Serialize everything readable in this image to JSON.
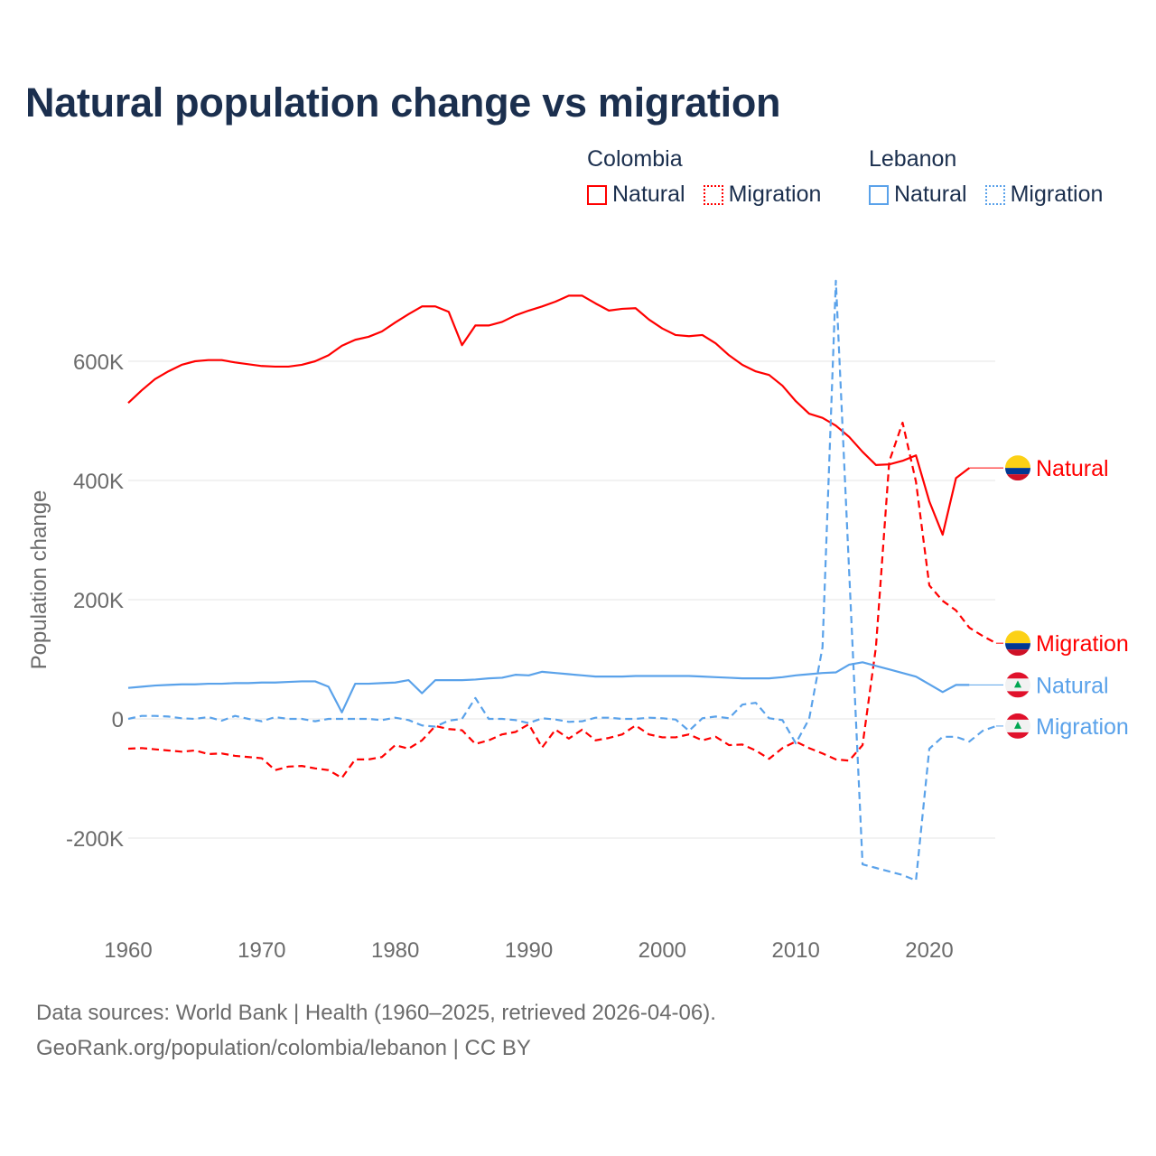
{
  "title": "Natural population change vs migration",
  "legend": [
    {
      "group": "Colombia",
      "items": [
        {
          "label": "Natural",
          "style": "solid",
          "color": "#ff0000"
        },
        {
          "label": "Migration",
          "style": "dotted",
          "color": "#ff0000"
        }
      ]
    },
    {
      "group": "Lebanon",
      "items": [
        {
          "label": "Natural",
          "style": "solid",
          "color": "#5aa2ea"
        },
        {
          "label": "Migration",
          "style": "dotted",
          "color": "#5aa2ea"
        }
      ]
    }
  ],
  "footer": {
    "line1": "Data sources: World Bank | Health (1960–2025, retrieved 2026-04-06).",
    "line2": "GeoRank.org/population/colombia/lebanon | CC BY"
  },
  "chart_data": {
    "type": "line",
    "title": "Natural population change vs migration",
    "xlabel": "",
    "ylabel": "Population change",
    "xlim": [
      1960,
      2025
    ],
    "ylim": [
      -300,
      750
    ],
    "y_unit": "thousands",
    "grid": true,
    "x_ticks": [
      {
        "value": 1960,
        "label": "1960"
      },
      {
        "value": 1970,
        "label": "1970"
      },
      {
        "value": 1980,
        "label": "1980"
      },
      {
        "value": 1990,
        "label": "1990"
      },
      {
        "value": 2000,
        "label": "2000"
      },
      {
        "value": 2010,
        "label": "2010"
      },
      {
        "value": 2020,
        "label": "2020"
      }
    ],
    "y_ticks": [
      {
        "value": -200,
        "label": "-200K"
      },
      {
        "value": 0,
        "label": "0"
      },
      {
        "value": 200,
        "label": "200K"
      },
      {
        "value": 400,
        "label": "400K"
      },
      {
        "value": 600,
        "label": "600K"
      }
    ],
    "series": [
      {
        "name": "Natural",
        "country": "Colombia",
        "color": "#ff0000",
        "dash": "solid",
        "flag": "colombia",
        "start_year": 1960,
        "values": [
          530,
          551,
          570,
          583,
          594,
          600,
          602,
          602,
          598,
          595,
          592,
          591,
          591,
          594,
          600,
          610,
          626,
          636,
          641,
          650,
          665,
          679,
          692,
          692,
          683,
          627,
          660,
          660,
          666,
          677,
          685,
          692,
          700,
          710,
          710,
          697,
          685,
          688,
          689,
          670,
          655,
          644,
          642,
          644,
          630,
          610,
          594,
          583,
          577,
          559,
          533,
          512,
          505,
          492,
          473,
          448,
          426,
          427,
          433,
          442,
          365,
          309,
          404,
          421
        ]
      },
      {
        "name": "Migration",
        "country": "Colombia",
        "color": "#ff0000",
        "dash": "dashed",
        "flag": "colombia",
        "start_year": 1960,
        "values": [
          -50,
          -49,
          -51,
          -53,
          -55,
          -53,
          -59,
          -58,
          -62,
          -64,
          -66,
          -86,
          -80,
          -79,
          -83,
          -86,
          -99,
          -68,
          -68,
          -64,
          -44,
          -50,
          -36,
          -12,
          -17,
          -19,
          -42,
          -36,
          -26,
          -22,
          -9,
          -48,
          -18,
          -33,
          -18,
          -36,
          -32,
          -26,
          -11,
          -26,
          -31,
          -31,
          -26,
          -36,
          -30,
          -44,
          -43,
          -53,
          -67,
          -49,
          -38,
          -49,
          -58,
          -68,
          -70,
          -44,
          120,
          432,
          497,
          398,
          224,
          198,
          182,
          153,
          139,
          127
        ]
      },
      {
        "name": "Natural",
        "country": "Lebanon",
        "color": "#5aa2ea",
        "dash": "solid",
        "flag": "lebanon",
        "start_year": 1960,
        "values": [
          52,
          54,
          56,
          57,
          58,
          58,
          59,
          59,
          60,
          60,
          61,
          61,
          62,
          63,
          63,
          54,
          11,
          59,
          59,
          60,
          61,
          65,
          43,
          65,
          65,
          65,
          66,
          68,
          69,
          74,
          73,
          79,
          77,
          75,
          73,
          71,
          71,
          71,
          72,
          72,
          72,
          72,
          72,
          71,
          70,
          69,
          68,
          68,
          68,
          70,
          73,
          75,
          77,
          78,
          91,
          95,
          89,
          83,
          77,
          71,
          58,
          45,
          57,
          57
        ]
      },
      {
        "name": "Migration",
        "country": "Lebanon",
        "color": "#5aa2ea",
        "dash": "dashed",
        "flag": "lebanon",
        "start_year": 1960,
        "values": [
          0,
          5,
          5,
          4,
          1,
          0,
          3,
          -3,
          5,
          0,
          -4,
          3,
          0,
          0,
          -4,
          0,
          0,
          0,
          0,
          -2,
          2,
          -2,
          -11,
          -13,
          -3,
          0,
          35,
          0,
          0,
          -2,
          -7,
          1,
          -1,
          -5,
          -4,
          2,
          2,
          0,
          0,
          2,
          1,
          -1,
          -20,
          1,
          4,
          1,
          24,
          27,
          1,
          -2,
          -41,
          0,
          120,
          735,
          245,
          -244,
          -250,
          -256,
          -262,
          -271,
          -50,
          -30,
          -30,
          -38,
          -20,
          -12
        ]
      }
    ],
    "end_labels": [
      "Natural",
      "Migration",
      "Natural",
      "Migration"
    ]
  }
}
